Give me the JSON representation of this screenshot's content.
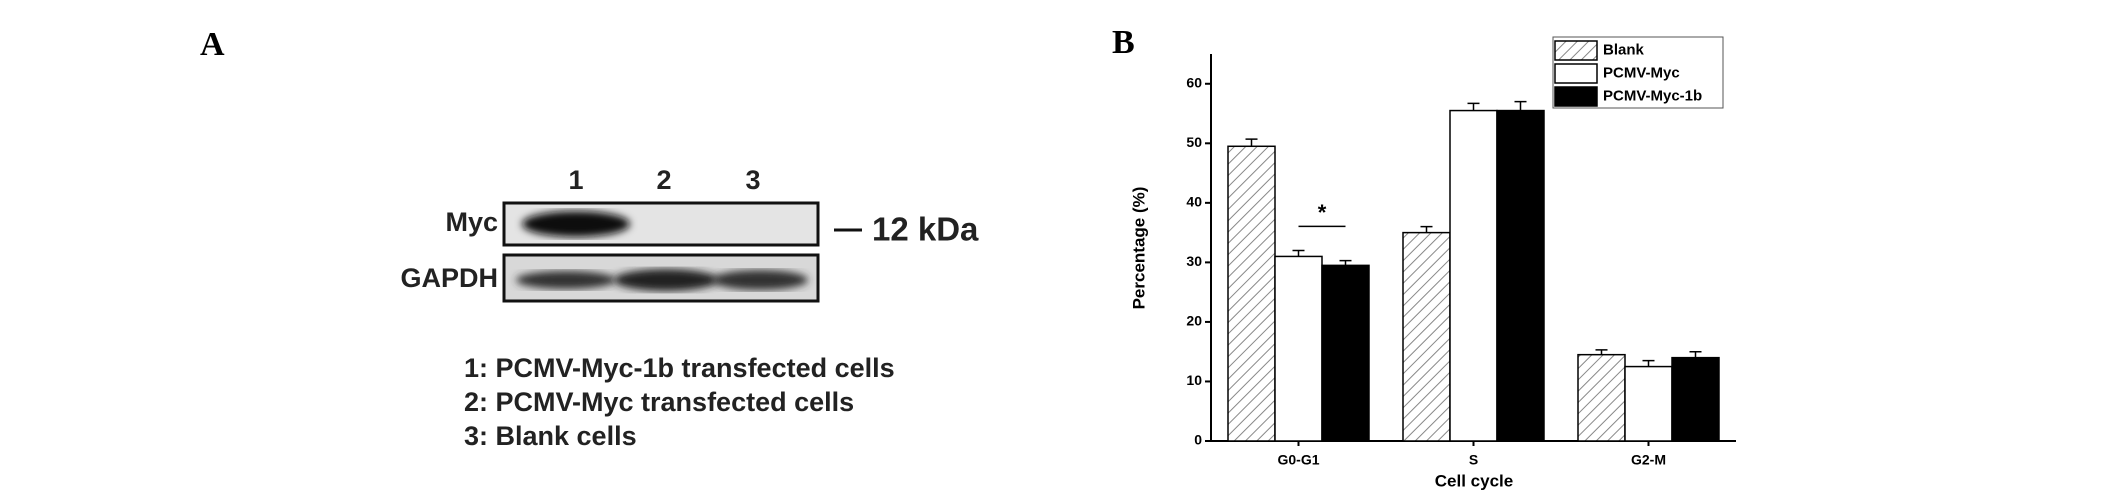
{
  "panel_a": {
    "panel_label": "A",
    "lanes": [
      "1",
      "2",
      "3"
    ],
    "rows": [
      "Myc",
      "GAPDH"
    ],
    "marker": "12 kDa",
    "legend": [
      "1: PCMV-Myc-1b transfected cells",
      "2: PCMV-Myc transfected cells",
      "3: Blank cells"
    ]
  },
  "chart_data": {
    "type": "bar",
    "panel_label": "B",
    "xlabel": "Cell cycle",
    "ylabel": "Percentage (%)",
    "categories": [
      "G0-G1",
      "S",
      "G2-M"
    ],
    "series": [
      {
        "name": "Blank",
        "color": "#ffffff",
        "hatch": true,
        "values": [
          49.5,
          35,
          14.5
        ],
        "errors": [
          1.2,
          1,
          0.8
        ]
      },
      {
        "name": "PCMV-Myc",
        "color": "#ffffff",
        "values": [
          31,
          55.5,
          12.5
        ],
        "errors": [
          1,
          1.2,
          1
        ]
      },
      {
        "name": "PCMV-Myc-1b",
        "color": "#000000",
        "values": [
          29.5,
          55.5,
          14
        ],
        "errors": [
          0.8,
          1.5,
          1
        ]
      }
    ],
    "annotation": "*",
    "ylim": [
      0,
      65
    ],
    "yticks": [
      0,
      10,
      20,
      30,
      40,
      50,
      60
    ],
    "legend": "upper right"
  }
}
